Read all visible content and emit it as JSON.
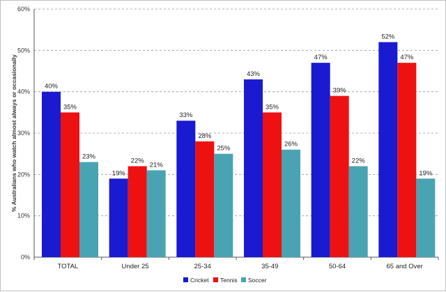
{
  "chart_data": {
    "type": "bar",
    "title": "",
    "ylabel": "% Australians who watch almost always or occasionally",
    "xlabel": "",
    "ylim": [
      0,
      60
    ],
    "yticks": [
      0,
      10,
      20,
      30,
      40,
      50,
      60
    ],
    "ytick_labels": [
      "0%",
      "10%",
      "20%",
      "30%",
      "40%",
      "50%",
      "60%"
    ],
    "grid": "horizontal dashed",
    "legend_position": "bottom-right",
    "categories": [
      "TOTAL",
      "Under 25",
      "25-34",
      "35-49",
      "50-64",
      "65 and Over"
    ],
    "series": [
      {
        "name": "Cricket",
        "color": "#1a1ad0",
        "values": [
          40,
          19,
          33,
          43,
          47,
          52
        ],
        "labels": [
          "40%",
          "19%",
          "33%",
          "43%",
          "47%",
          "52%"
        ]
      },
      {
        "name": "Tennis",
        "color": "#ee1111",
        "values": [
          35,
          22,
          28,
          35,
          39,
          47
        ],
        "labels": [
          "35%",
          "22%",
          "28%",
          "35%",
          "39%",
          "47%"
        ]
      },
      {
        "name": "Soccer",
        "color": "#4aa3b3",
        "values": [
          23,
          21,
          25,
          26,
          22,
          19
        ],
        "labels": [
          "23%",
          "21%",
          "25%",
          "26%",
          "22%",
          "19%"
        ]
      }
    ]
  }
}
